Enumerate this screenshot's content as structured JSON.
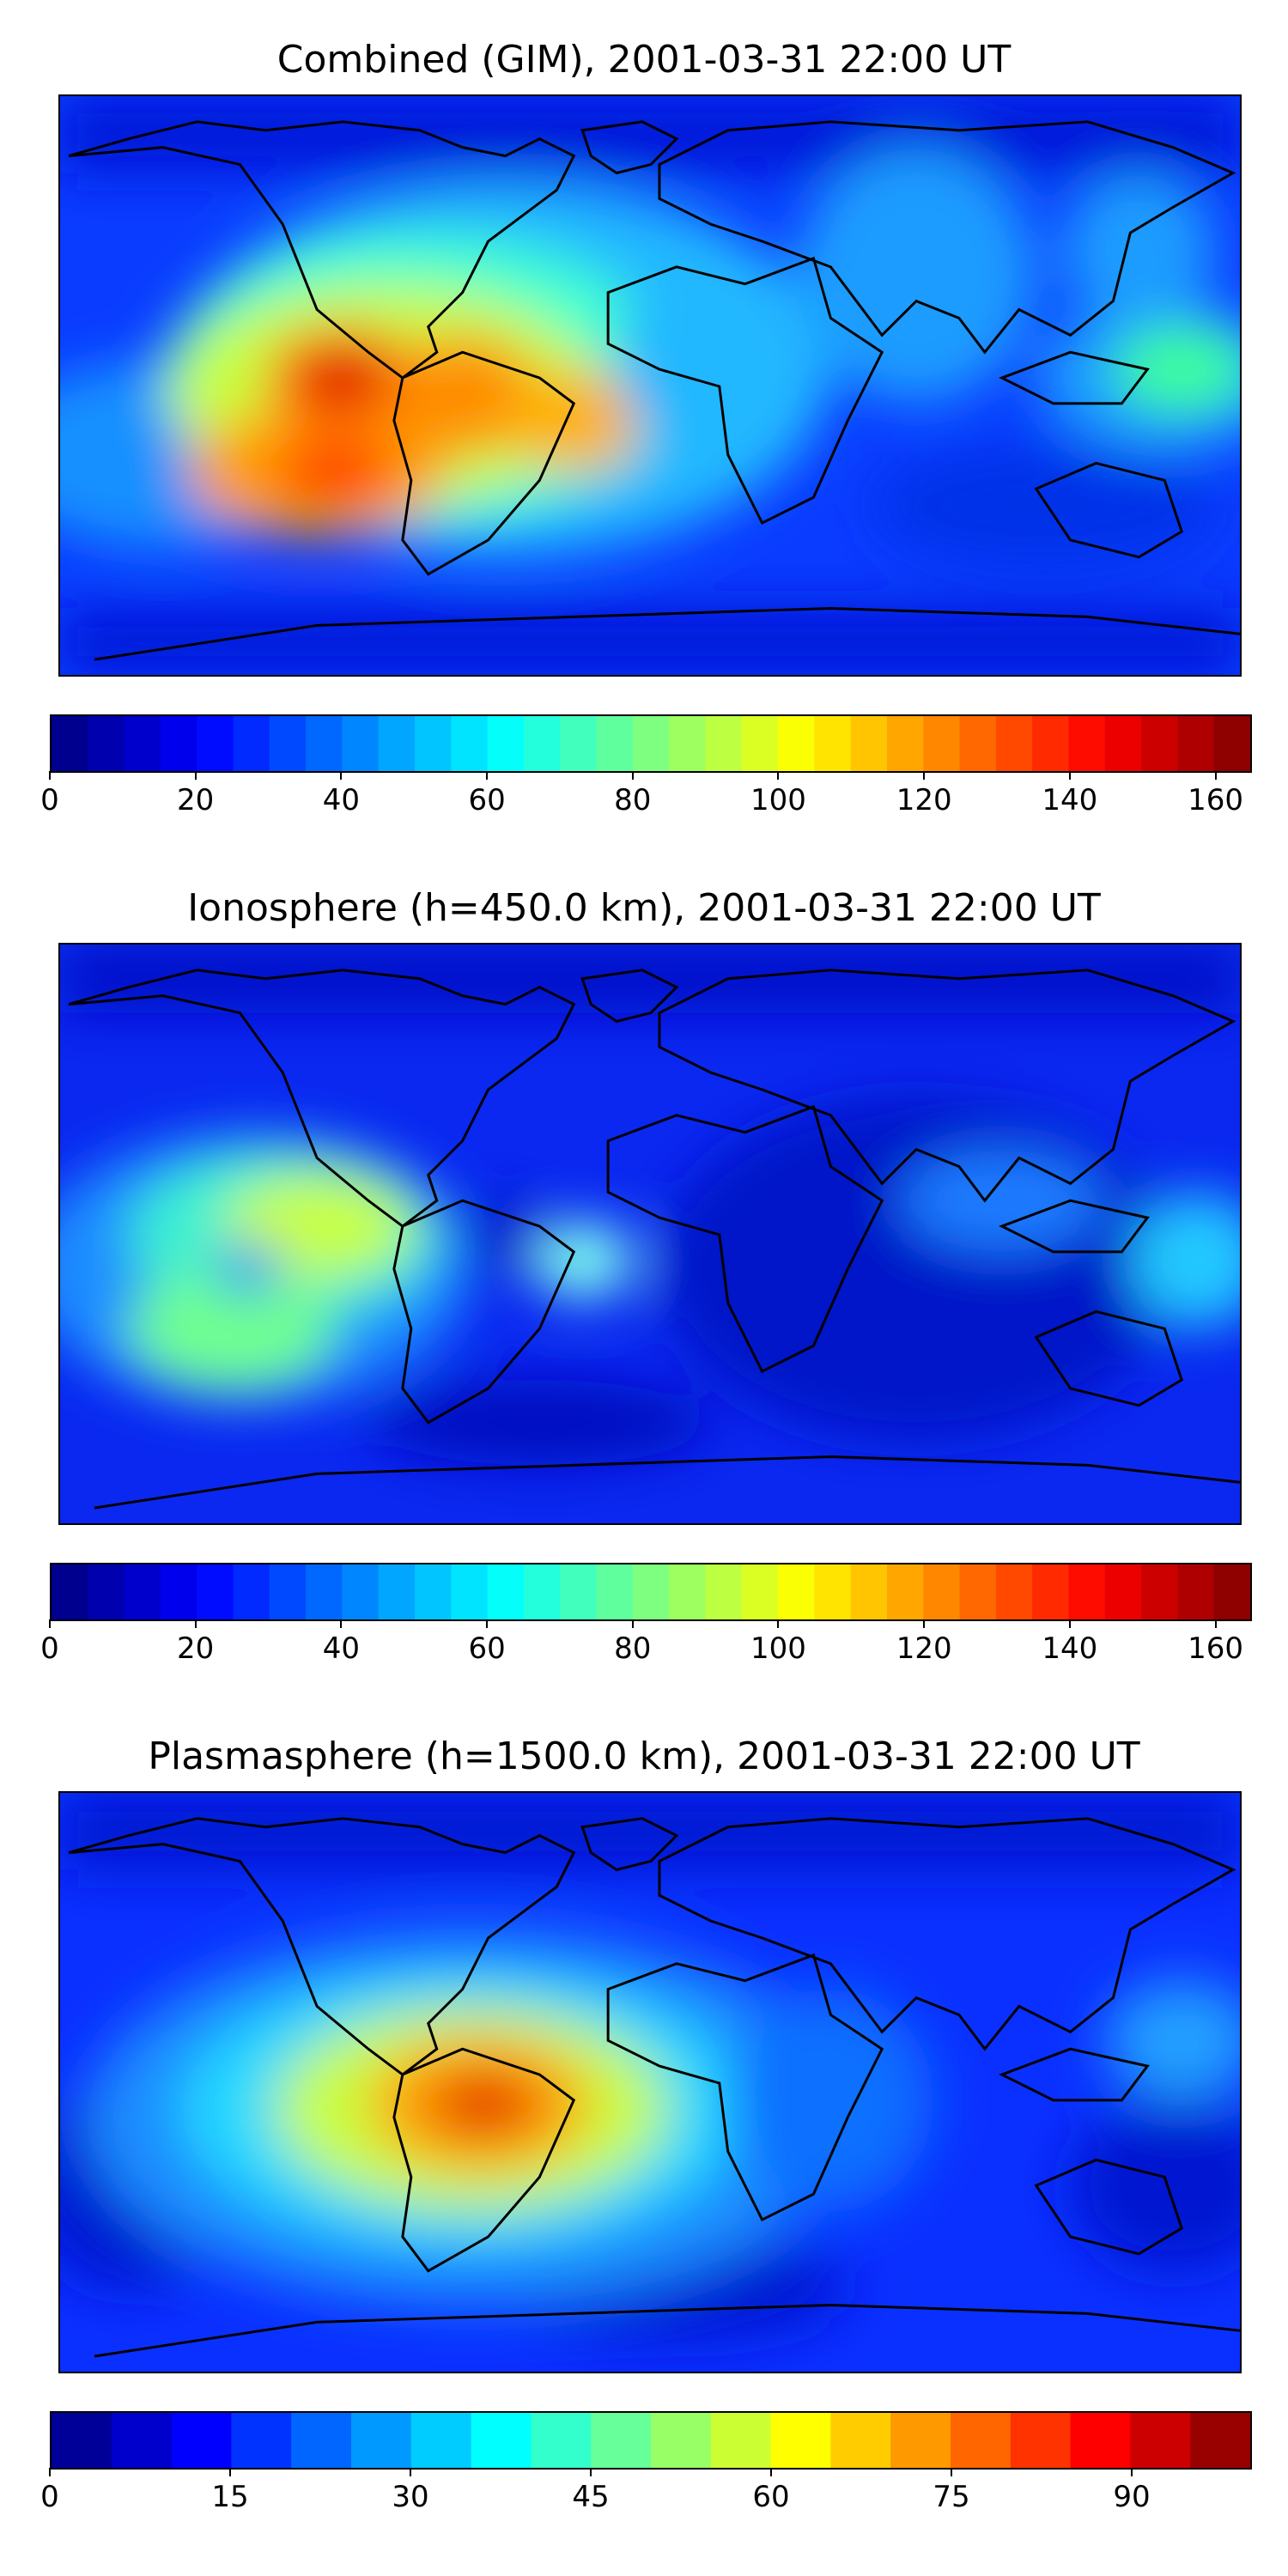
{
  "panels": [
    {
      "title": "Combined (GIM), 2001-03-31 22:00 UT",
      "colorbar": {
        "min": 0,
        "max": 165,
        "ticks": [
          0,
          20,
          40,
          60,
          80,
          100,
          120,
          140,
          160
        ],
        "levels": 33
      }
    },
    {
      "title": "Ionosphere  (h=450.0 km), 2001-03-31 22:00 UT",
      "colorbar": {
        "min": 0,
        "max": 165,
        "ticks": [
          0,
          20,
          40,
          60,
          80,
          100,
          120,
          140,
          160
        ],
        "levels": 33
      }
    },
    {
      "title": "Plasmasphere (h=1500.0 km), 2001-03-31 22:00 UT",
      "colorbar": {
        "min": 0,
        "max": 100,
        "ticks": [
          0,
          15,
          30,
          45,
          60,
          75,
          90
        ],
        "levels": 20
      }
    }
  ],
  "colormap": "jet",
  "colors": {
    "jet": [
      "#00007f",
      "#0000ff",
      "#007fff",
      "#00ffff",
      "#7fff7f",
      "#ffff00",
      "#ff7f00",
      "#ff0000",
      "#7f0000"
    ]
  }
}
